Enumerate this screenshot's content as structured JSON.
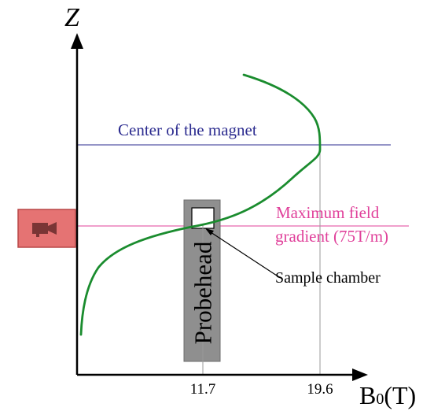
{
  "axes": {
    "z_label": "Z",
    "b_label_main": "B",
    "b_label_sub": "0",
    "b_label_unit": "(T)"
  },
  "ticks": {
    "b_11_7": "11.7",
    "b_19_6": "19.6"
  },
  "labels": {
    "center_magnet": "Center of the magnet",
    "max_gradient_line1": "Maximum field",
    "max_gradient_line2": "gradient (75T/m)",
    "probehead": "Probehead",
    "sample_chamber": "Sample chamber"
  },
  "colors": {
    "axis": "#000000",
    "center_line": "#2b2b8f",
    "gradient_line": "#e0409a",
    "field_curve": "#1a8c2e",
    "probehead_fill": "#8f8f8f",
    "camera_box_fill": "#e57373",
    "camera_box_stroke": "#b84848",
    "camera_icon": "#7a3535"
  },
  "icons": {
    "camera": "camera-icon"
  }
}
